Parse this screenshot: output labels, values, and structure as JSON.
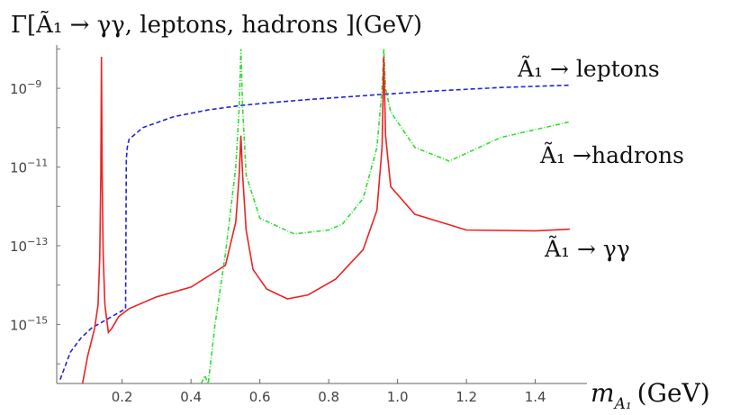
{
  "chart_data": {
    "type": "line",
    "title": "Γ[Ã₁ → γγ, leptons, hadrons ](GeV)",
    "xlabel": "m_{A₁} (GeV)",
    "xlabel_main": "m",
    "xlabel_sub": "A₁",
    "xlabel_unit": "(GeV)",
    "ylabel": "",
    "x_ticks": [
      "0.2",
      "0.4",
      "0.6",
      "0.8",
      "1.0",
      "1.2",
      "1.4"
    ],
    "y_ticks": [
      {
        "base": "10",
        "exp": "−9",
        "value": -9
      },
      {
        "base": "10",
        "exp": "−11",
        "value": -11
      },
      {
        "base": "10",
        "exp": "−13",
        "value": -13
      },
      {
        "base": "10",
        "exp": "−15",
        "value": -15
      }
    ],
    "xlim": [
      0.01,
      1.55
    ],
    "ylim_log10": [
      -16.5,
      -7.9
    ],
    "log_y": true,
    "grid": false,
    "series": [
      {
        "name": "Ã₁ → leptons",
        "label_text": "Ã₁ → leptons",
        "color": "#2222dd",
        "dash": "5,3",
        "x": [
          0.02,
          0.05,
          0.08,
          0.11,
          0.14,
          0.17,
          0.2,
          0.21,
          0.212,
          0.215,
          0.22,
          0.26,
          0.35,
          0.45,
          0.55,
          0.65,
          0.75,
          0.85,
          0.96,
          1.1,
          1.3,
          1.5
        ],
        "log10_y": [
          -16.4,
          -15.7,
          -15.35,
          -15.1,
          -14.95,
          -14.8,
          -14.65,
          -14.6,
          -10.8,
          -10.5,
          -10.3,
          -10.0,
          -9.72,
          -9.55,
          -9.43,
          -9.35,
          -9.28,
          -9.22,
          -9.15,
          -9.07,
          -8.98,
          -8.92
        ]
      },
      {
        "name": "Ã₁ → hadrons",
        "label_text": "Ã₁ →hadrons",
        "color": "#33dd33",
        "dash": "5,2,1,2",
        "x": [
          0.43,
          0.44,
          0.45,
          0.47,
          0.5,
          0.53,
          0.54,
          0.545,
          0.55,
          0.56,
          0.6,
          0.7,
          0.8,
          0.84,
          0.9,
          0.94,
          0.955,
          0.96,
          0.965,
          0.98,
          1.05,
          1.15,
          1.3,
          1.5
        ],
        "log10_y": [
          -16.5,
          -16.3,
          -16.5,
          -15.0,
          -13.2,
          -11.0,
          -9.5,
          -8.0,
          -9.5,
          -11.2,
          -12.3,
          -12.7,
          -12.6,
          -12.45,
          -11.8,
          -10.5,
          -9.0,
          -8.0,
          -9.0,
          -9.6,
          -10.5,
          -10.85,
          -10.25,
          -9.85
        ]
      },
      {
        "name": "Ã₁ → γγ",
        "label_text": "Ã₁ → γγ",
        "color": "#ee2222",
        "dash": "",
        "x": [
          0.085,
          0.1,
          0.12,
          0.13,
          0.135,
          0.138,
          0.14,
          0.142,
          0.145,
          0.15,
          0.16,
          0.17,
          0.19,
          0.22,
          0.3,
          0.4,
          0.5,
          0.53,
          0.54,
          0.545,
          0.55,
          0.56,
          0.58,
          0.62,
          0.68,
          0.74,
          0.82,
          0.9,
          0.94,
          0.955,
          0.96,
          0.965,
          0.98,
          1.05,
          1.2,
          1.4,
          1.5
        ],
        "log10_y": [
          -16.5,
          -15.8,
          -15.1,
          -14.5,
          -13.3,
          -11.2,
          -8.2,
          -11.2,
          -13.2,
          -14.5,
          -15.2,
          -15.1,
          -14.8,
          -14.6,
          -14.3,
          -14.05,
          -13.5,
          -12.4,
          -11.2,
          -10.2,
          -11.2,
          -12.6,
          -13.6,
          -14.1,
          -14.35,
          -14.25,
          -13.85,
          -13.1,
          -12.1,
          -10.5,
          -8.2,
          -10.2,
          -11.5,
          -12.2,
          -12.6,
          -12.62,
          -12.58
        ]
      }
    ]
  }
}
